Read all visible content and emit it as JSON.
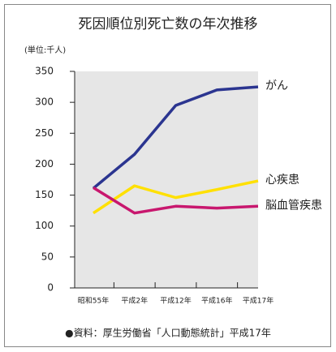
{
  "chart_data": {
    "type": "line",
    "title": "死因順位別死亡数の年次推移",
    "unit_label": "(単位:千人)",
    "source": "●資料：厚生労働省「人口動態統計」平成17年",
    "categories": [
      "昭和55年",
      "平成2年",
      "平成12年",
      "平成16年",
      "平成17年"
    ],
    "series": [
      {
        "name": "がん",
        "color": "#2b3590",
        "values": [
          161,
          216,
          295,
          320,
          325
        ]
      },
      {
        "name": "心疾患",
        "color": "#ffe000",
        "values": [
          121,
          165,
          146,
          159,
          173
        ]
      },
      {
        "name": "脳血管疾患",
        "color": "#c8176e",
        "values": [
          162,
          121,
          132,
          129,
          132
        ]
      }
    ],
    "ylim": [
      0,
      350
    ],
    "yticks": [
      0,
      50,
      100,
      150,
      200,
      250,
      300,
      350
    ],
    "grid": false
  }
}
